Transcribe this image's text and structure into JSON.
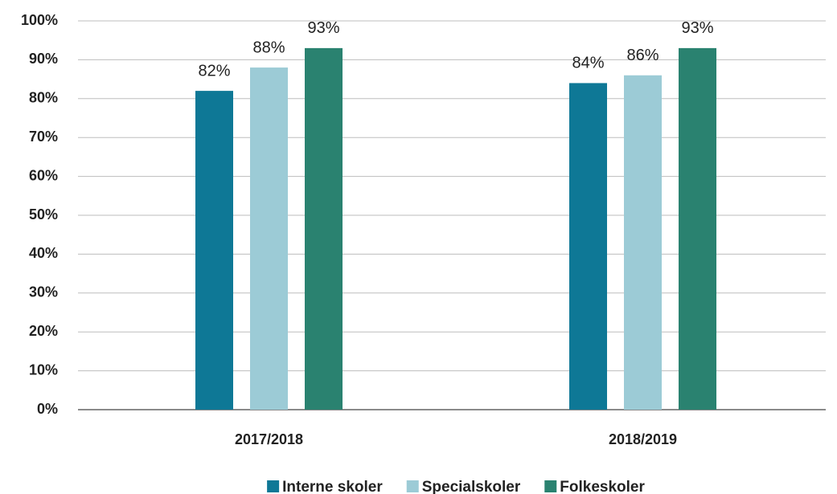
{
  "chart_data": {
    "type": "bar",
    "categories": [
      "2017/2018",
      "2018/2019"
    ],
    "series": [
      {
        "name": "Interne skoler",
        "color": "#0e7896",
        "values": [
          82,
          84
        ],
        "value_labels": [
          "82%",
          "84%"
        ]
      },
      {
        "name": "Specialskoler",
        "color": "#9ccbd6",
        "values": [
          88,
          86
        ],
        "value_labels": [
          "88%",
          "86%"
        ]
      },
      {
        "name": "Folkeskoler",
        "color": "#2a8270",
        "values": [
          93,
          93
        ],
        "value_labels": [
          "93%",
          "93%"
        ]
      }
    ],
    "ylim": [
      0,
      100
    ],
    "yticks": [
      {
        "value": 0,
        "label": "0%"
      },
      {
        "value": 10,
        "label": "10%"
      },
      {
        "value": 20,
        "label": "20%"
      },
      {
        "value": 30,
        "label": "30%"
      },
      {
        "value": 40,
        "label": "40%"
      },
      {
        "value": 50,
        "label": "50%"
      },
      {
        "value": 60,
        "label": "60%"
      },
      {
        "value": 70,
        "label": "70%"
      },
      {
        "value": 80,
        "label": "80%"
      },
      {
        "value": 90,
        "label": "90%"
      },
      {
        "value": 100,
        "label": "100%"
      }
    ],
    "grid": true,
    "legend": "bottom"
  }
}
